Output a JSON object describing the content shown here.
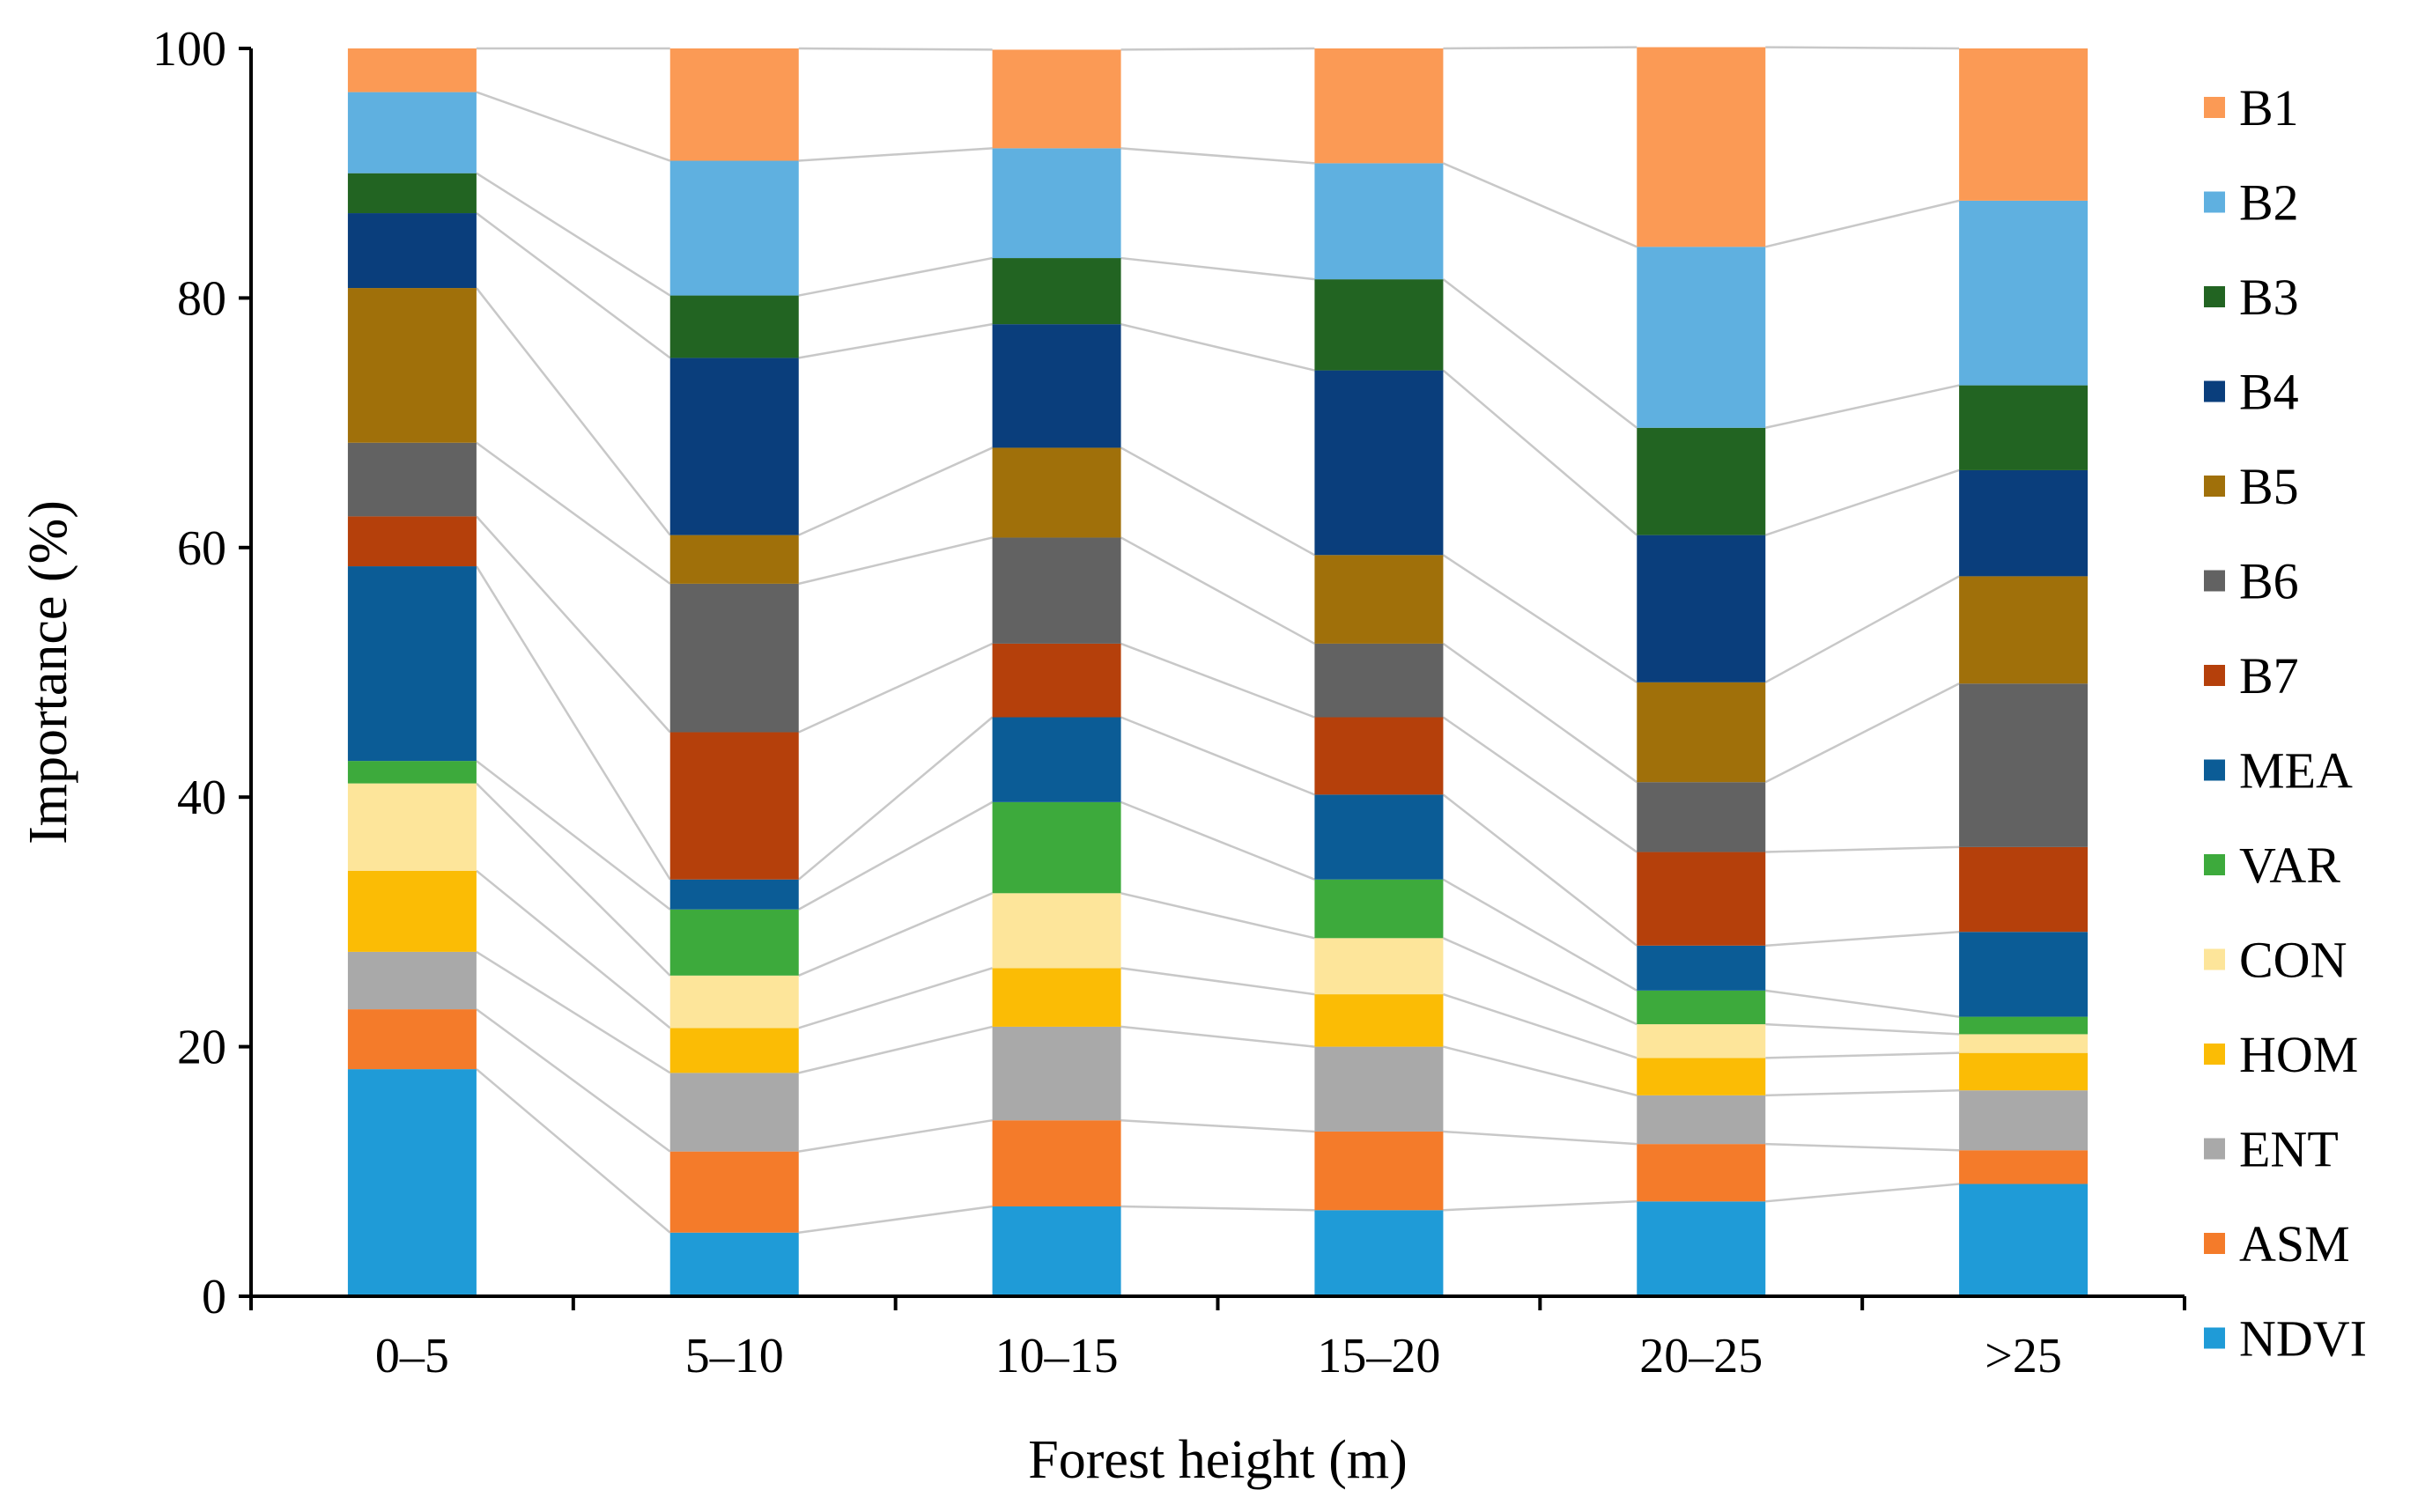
{
  "chart_data": {
    "type": "bar",
    "stacked": true,
    "xlabel": "Forest height (m)",
    "ylabel": "Importance (%)",
    "ylim": [
      0,
      100
    ],
    "yticks": [
      0,
      20,
      40,
      60,
      80,
      100
    ],
    "grid": false,
    "legend_position": "right",
    "categories": [
      "0–5",
      "5–10",
      "10–15",
      "15–20",
      "20–25",
      ">25"
    ],
    "series": [
      {
        "name": "NDVI",
        "color": "#1f9bd7",
        "values": [
          18.2,
          5.1,
          7.2,
          6.9,
          7.6,
          9.0
        ]
      },
      {
        "name": "ASM",
        "color": "#f47b2a",
        "values": [
          4.8,
          6.5,
          6.9,
          6.3,
          4.6,
          2.7
        ]
      },
      {
        "name": "ENT",
        "color": "#a9a9a9",
        "values": [
          4.6,
          6.3,
          7.5,
          6.8,
          3.9,
          4.8
        ]
      },
      {
        "name": "HOM",
        "color": "#fbbc05",
        "values": [
          6.5,
          3.6,
          4.7,
          4.2,
          3.0,
          3.0
        ]
      },
      {
        "name": "CON",
        "color": "#fde59a",
        "values": [
          7.0,
          4.2,
          6.0,
          4.5,
          2.7,
          1.5
        ]
      },
      {
        "name": "VAR",
        "color": "#3daa3c",
        "values": [
          1.8,
          5.3,
          7.3,
          4.7,
          2.7,
          1.4
        ]
      },
      {
        "name": "MEA",
        "color": "#0b5c96",
        "values": [
          15.6,
          2.4,
          6.8,
          6.8,
          3.6,
          6.8
        ]
      },
      {
        "name": "B7",
        "color": "#b5400b",
        "values": [
          4.0,
          11.8,
          5.9,
          6.2,
          7.5,
          6.8
        ]
      },
      {
        "name": "B6",
        "color": "#626262",
        "values": [
          5.9,
          11.9,
          8.5,
          5.9,
          5.6,
          13.1
        ]
      },
      {
        "name": "B5",
        "color": "#a0700a",
        "values": [
          12.4,
          3.9,
          7.2,
          7.1,
          8.0,
          8.6
        ]
      },
      {
        "name": "B4",
        "color": "#0a3e7c",
        "values": [
          6.0,
          14.2,
          9.9,
          14.8,
          11.8,
          8.5
        ]
      },
      {
        "name": "B3",
        "color": "#226422",
        "values": [
          3.2,
          5.0,
          5.3,
          7.3,
          8.6,
          6.8
        ]
      },
      {
        "name": "B2",
        "color": "#5fb0e0",
        "values": [
          6.5,
          10.8,
          8.8,
          9.3,
          14.5,
          14.8
        ]
      },
      {
        "name": "B1",
        "color": "#fb9a55",
        "values": [
          3.5,
          9.0,
          7.9,
          9.2,
          16.0,
          12.2
        ]
      }
    ]
  }
}
